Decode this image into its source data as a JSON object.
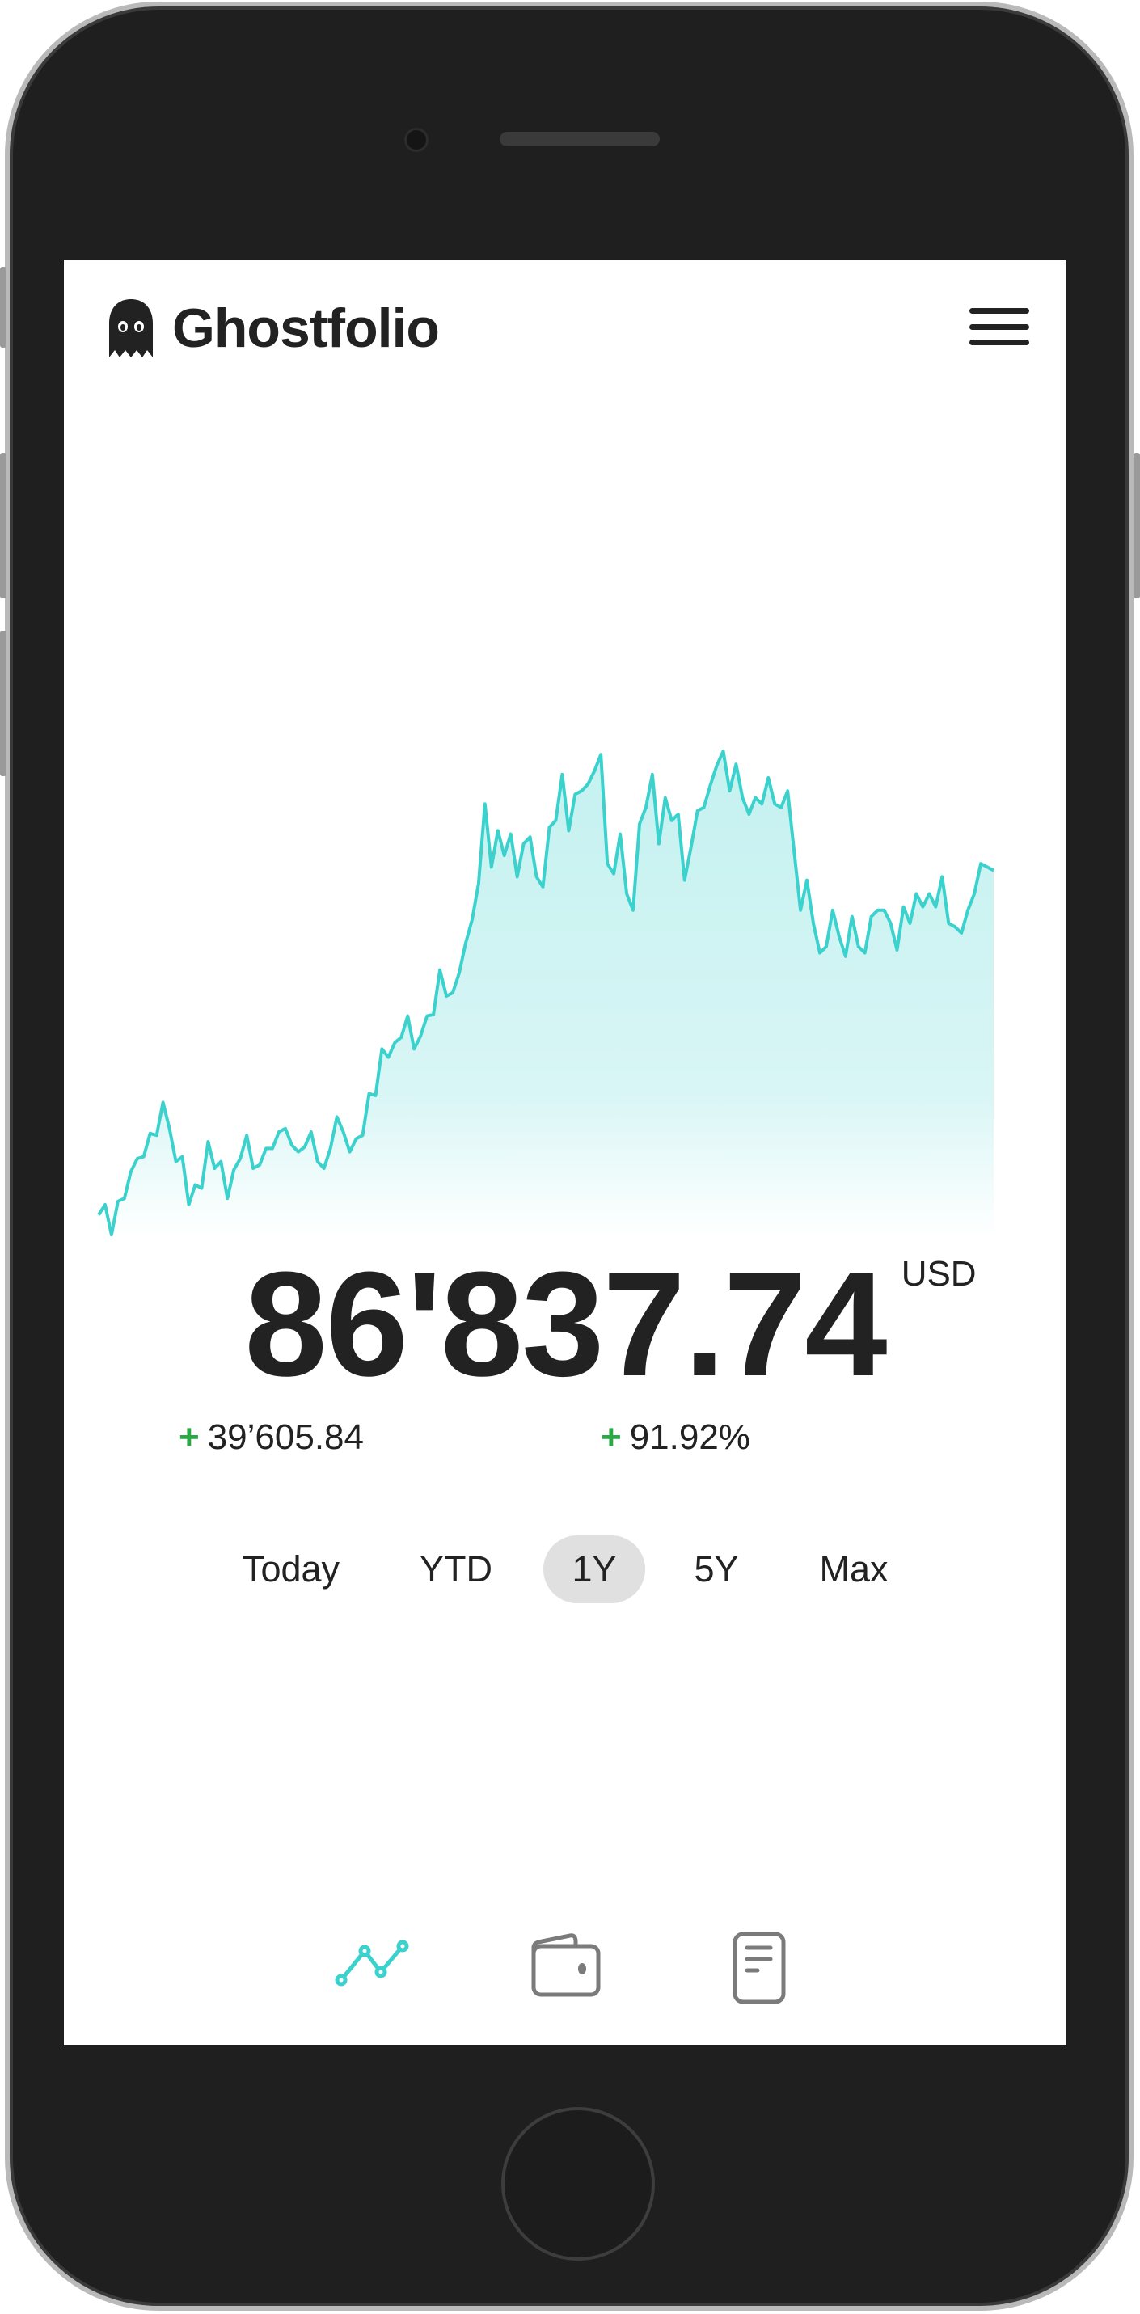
{
  "app": {
    "title": "Ghostfolio",
    "logo_icon": "ghost-icon",
    "menu_icon": "hamburger-menu-icon"
  },
  "portfolio": {
    "value": "86'837.74",
    "currency": "USD",
    "change_abs_sign": "+",
    "change_abs": "39’605.84",
    "change_pct_sign": "+",
    "change_pct": "91.92%",
    "positive_color": "#2aa845"
  },
  "range_tabs": {
    "items": [
      {
        "label": "Today",
        "active": false
      },
      {
        "label": "YTD",
        "active": false
      },
      {
        "label": "1Y",
        "active": true
      },
      {
        "label": "5Y",
        "active": false
      },
      {
        "label": "Max",
        "active": false
      }
    ]
  },
  "bottom_nav": {
    "items": [
      {
        "icon": "line-chart-icon",
        "active": true
      },
      {
        "icon": "wallet-icon",
        "active": false
      },
      {
        "icon": "document-icon",
        "active": false
      }
    ]
  },
  "chart_data": {
    "type": "area",
    "title": "",
    "xlabel": "",
    "ylabel": "",
    "grid": false,
    "axes_visible": false,
    "line_color": "#3bd1cd",
    "ylim": [
      0,
      100
    ],
    "values": [
      4.4,
      6.5,
      0.3,
      7.2,
      7.8,
      13.3,
      16.0,
      16.4,
      21.2,
      20.8,
      27.6,
      22.2,
      15.4,
      16.4,
      6.5,
      10.6,
      9.9,
      19.5,
      14.0,
      15.4,
      7.8,
      13.7,
      16.0,
      20.8,
      14.0,
      14.7,
      18.1,
      18.1,
      21.5,
      22.2,
      18.8,
      17.4,
      18.4,
      21.5,
      15.4,
      14.0,
      18.1,
      24.6,
      21.5,
      17.4,
      20.1,
      20.8,
      29.4,
      29.0,
      38.6,
      36.9,
      39.9,
      41.0,
      45.4,
      38.6,
      41.3,
      45.4,
      45.7,
      54.9,
      49.5,
      50.2,
      54.3,
      60.4,
      65.2,
      72.7,
      89.1,
      76.1,
      83.6,
      78.5,
      82.9,
      74.1,
      80.9,
      82.3,
      74.1,
      72.0,
      84.3,
      85.7,
      95.2,
      83.6,
      91.1,
      91.8,
      93.2,
      95.9,
      99.3,
      76.8,
      74.7,
      82.9,
      70.6,
      67.2,
      85.0,
      88.4,
      95.2,
      80.9,
      90.4,
      85.7,
      87.0,
      73.4,
      80.2,
      87.7,
      88.4,
      93.0,
      97.0,
      100,
      91.8,
      97.3,
      90.4,
      87.0,
      90.4,
      89.1,
      94.5,
      89.1,
      88.4,
      91.8,
      79.5,
      67.2,
      73.4,
      64.5,
      58.4,
      59.7,
      67.2,
      61.8,
      57.7,
      65.9,
      59.7,
      58.4,
      65.9,
      67.2,
      67.2,
      64.5,
      59.0,
      67.9,
      64.5,
      70.6,
      67.9,
      70.6,
      67.9,
      74.1,
      64.5,
      63.8,
      62.5,
      67.2,
      70.6,
      76.8,
      76.1,
      75.4
    ]
  }
}
